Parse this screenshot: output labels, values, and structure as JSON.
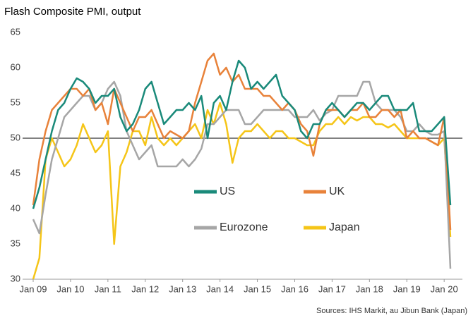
{
  "chart_data": {
    "type": "line",
    "title": "Flash Composite PMI, output",
    "source": "Sources: IHS Markit, au Jibun Bank (Japan)",
    "categories": [
      "Jan 09",
      null,
      null,
      null,
      null,
      null,
      "Jan 10",
      null,
      null,
      null,
      null,
      null,
      "Jan 11",
      null,
      null,
      null,
      null,
      null,
      "Jan 12",
      null,
      null,
      null,
      null,
      null,
      "Jan 13",
      null,
      null,
      null,
      null,
      null,
      "Jan 14",
      null,
      null,
      null,
      null,
      null,
      "Jan 15",
      null,
      null,
      null,
      null,
      null,
      "Jan 16",
      null,
      null,
      null,
      null,
      null,
      "Jan 17",
      null,
      null,
      null,
      null,
      null,
      "Jan 18",
      null,
      null,
      null,
      null,
      null,
      "Jan 19",
      null,
      null,
      null,
      null,
      null,
      "Jan 20",
      null
    ],
    "series": [
      {
        "name": "US",
        "color": "#1a8a7a",
        "values": [
          40,
          43,
          47,
          51,
          54,
          55,
          57,
          58.5,
          58,
          57,
          55,
          56,
          56,
          57,
          53,
          51,
          52,
          54,
          57,
          58,
          55,
          52,
          53,
          54,
          54,
          55,
          54,
          56,
          50,
          55,
          56,
          54,
          58,
          61,
          60,
          57,
          58,
          57,
          58,
          59,
          56,
          55,
          54,
          51,
          50,
          52,
          52,
          54,
          55,
          54,
          53,
          54,
          55,
          55,
          54,
          55,
          56,
          56,
          54,
          54,
          54,
          55,
          51,
          51,
          51,
          52,
          53,
          40.5
        ]
      },
      {
        "name": "UK",
        "color": "#e8823a",
        "values": [
          40.5,
          47,
          51,
          54,
          55,
          56,
          57,
          57,
          56,
          57,
          54,
          55,
          52,
          57,
          55,
          53,
          51,
          53,
          53,
          54,
          52,
          50,
          51,
          50.5,
          50,
          51,
          55,
          58,
          61,
          62,
          59,
          60,
          58,
          59,
          57,
          57,
          57,
          56,
          56,
          55,
          54,
          55,
          54,
          52,
          51,
          47.5,
          52,
          54,
          54,
          54,
          53,
          54,
          54,
          55,
          53,
          53,
          54,
          54,
          53,
          54,
          50,
          51,
          50,
          50,
          49.5,
          49,
          53,
          37
        ]
      },
      {
        "name": "Eurozone",
        "color": "#a6a6a6",
        "values": [
          38.5,
          36.5,
          42,
          47,
          50,
          53,
          54,
          55,
          56,
          56,
          54,
          55,
          57,
          58,
          56,
          51,
          49,
          47,
          48,
          49,
          46,
          46,
          46,
          46,
          47,
          46,
          47,
          48.5,
          52,
          52,
          53,
          54,
          54,
          54,
          52,
          52,
          53,
          54,
          54,
          54,
          54,
          54,
          53,
          53,
          53,
          54,
          52.5,
          53.5,
          54,
          56,
          56,
          56,
          56,
          58,
          58,
          55,
          54,
          54,
          54,
          53,
          51,
          51,
          52,
          51,
          50.5,
          50.5,
          51,
          31.5
        ]
      },
      {
        "name": "Japan",
        "color": "#f5c518",
        "values": [
          30,
          33,
          47,
          50,
          48,
          46,
          47,
          49,
          52,
          50,
          48,
          49,
          51,
          35,
          46,
          48,
          51,
          51,
          49,
          53,
          50,
          49,
          50,
          49,
          50,
          51,
          52,
          50,
          54,
          52,
          55,
          52,
          46.5,
          50,
          51,
          51,
          52,
          51,
          50,
          51,
          51,
          50,
          50,
          49.5,
          49,
          49,
          51,
          52,
          52,
          53,
          52,
          53,
          52.5,
          53,
          53,
          52,
          52,
          51.5,
          52,
          51,
          50,
          50,
          50,
          50,
          49.5,
          49,
          50,
          36
        ]
      }
    ],
    "hline": 50,
    "ylim": [
      30,
      65
    ],
    "yticks": [
      30,
      35,
      40,
      45,
      50,
      55,
      60,
      65
    ],
    "grid": false
  }
}
